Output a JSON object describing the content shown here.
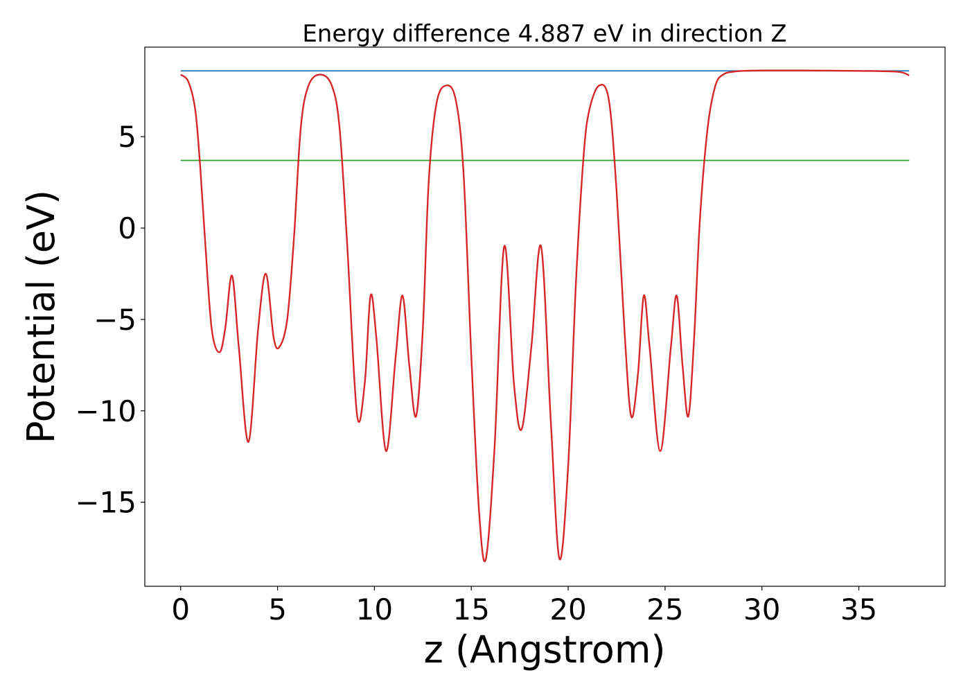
{
  "chart_data": {
    "type": "line",
    "title": "Energy difference 4.887 eV in direction Z",
    "xlabel": "z (Angstrom)",
    "ylabel": "Potential (eV)",
    "xlim": [
      -1.85,
      39.45
    ],
    "ylim": [
      -19.6,
      9.9
    ],
    "xticks": [
      0,
      5,
      10,
      15,
      20,
      25,
      30,
      35
    ],
    "yticks": [
      5,
      0,
      -5,
      -10,
      -15
    ],
    "xtick_labels": [
      "0",
      "5",
      "10",
      "15",
      "20",
      "25",
      "30",
      "35"
    ],
    "ytick_labels": [
      "5",
      "0",
      "−5",
      "−10",
      "−15"
    ],
    "grid": false,
    "legend": false,
    "series": [
      {
        "color": "#1f77b4",
        "style": "horizontal",
        "x": [
          0,
          37.6
        ],
        "y": [
          8.6,
          8.6
        ]
      },
      {
        "color": "#2ca02c",
        "style": "horizontal",
        "x": [
          0,
          37.6
        ],
        "y": [
          3.7,
          3.7
        ]
      },
      {
        "color": "#d62728",
        "style": "smooth",
        "x": [
          0.0,
          0.4,
          0.75,
          1.0,
          1.25,
          1.6,
          2.0,
          2.3,
          2.65,
          3.0,
          3.5,
          4.0,
          4.4,
          4.8,
          5.1,
          5.5,
          5.85,
          6.2,
          6.6,
          7.2,
          7.8,
          8.2,
          8.6,
          9.1,
          9.5,
          9.8,
          10.1,
          10.6,
          11.1,
          11.45,
          11.8,
          12.15,
          12.5,
          12.8,
          13.2,
          13.7,
          14.2,
          14.6,
          15.0,
          15.4,
          15.75,
          16.2,
          16.7,
          17.2,
          17.6,
          18.1,
          18.6,
          19.1,
          19.55,
          20.0,
          20.4,
          20.8,
          21.1,
          21.6,
          22.1,
          22.5,
          22.9,
          23.25,
          23.6,
          23.9,
          24.2,
          24.75,
          25.3,
          25.6,
          25.9,
          26.2,
          26.5,
          26.8,
          27.2,
          27.6,
          28.0,
          28.5,
          29.0,
          30.0,
          32.0,
          35.0,
          37.0,
          37.6
        ],
        "y": [
          8.4,
          8.0,
          6.5,
          3.5,
          -0.5,
          -5.5,
          -6.8,
          -5.5,
          -2.6,
          -6.5,
          -11.7,
          -5.5,
          -2.5,
          -6.0,
          -6.5,
          -5.0,
          -0.5,
          5.5,
          7.8,
          8.4,
          7.8,
          5.5,
          -1.0,
          -10.2,
          -8.5,
          -3.7,
          -6.0,
          -12.2,
          -7.0,
          -3.7,
          -7.5,
          -10.3,
          -5.5,
          2.5,
          6.8,
          7.8,
          7.0,
          3.0,
          -7.0,
          -15.5,
          -18.1,
          -12.0,
          -1.0,
          -8.5,
          -11.0,
          -6.5,
          -1.0,
          -10.5,
          -18.1,
          -13.0,
          -3.0,
          4.0,
          6.5,
          7.8,
          7.0,
          2.0,
          -5.5,
          -10.3,
          -8.0,
          -3.7,
          -6.5,
          -12.2,
          -6.5,
          -3.7,
          -7.5,
          -10.3,
          -6.0,
          0.5,
          5.5,
          7.8,
          8.4,
          8.55,
          8.6,
          8.62,
          8.62,
          8.6,
          8.55,
          8.35
        ]
      }
    ]
  }
}
